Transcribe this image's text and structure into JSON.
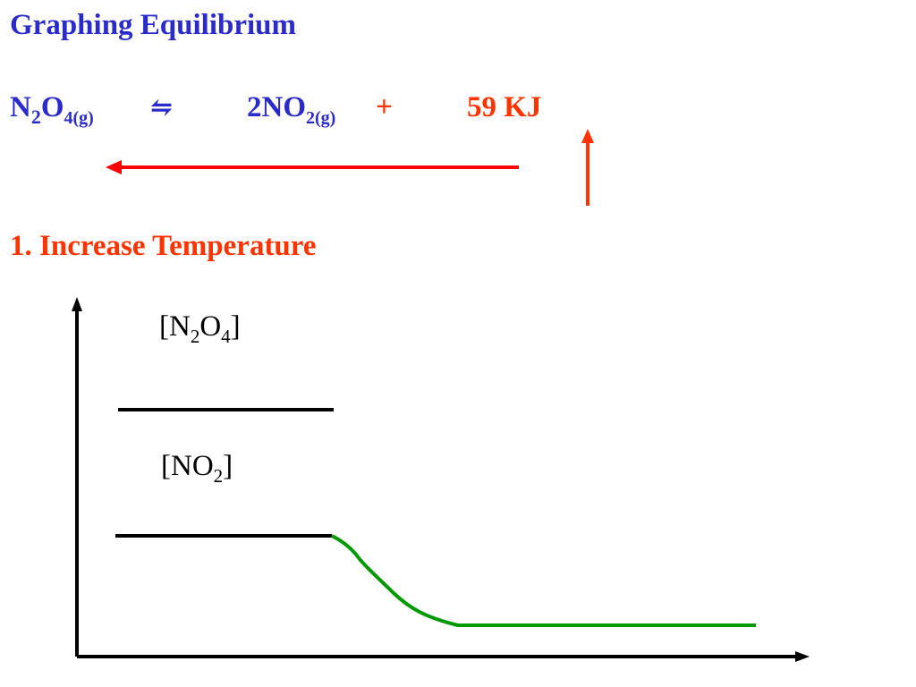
{
  "title": "Graphing Equilibrium",
  "equation": {
    "reactant": {
      "base1": "N",
      "sub1": "2",
      "base2": "O",
      "sub2": "4(g)"
    },
    "arrow_symbol": "⇋",
    "product": {
      "coef_base": "2NO",
      "sub": "2(g)"
    },
    "plus": "+",
    "energy": "59 KJ"
  },
  "step": "1. Increase Temperature",
  "graph": {
    "label_n2o4": {
      "open": "[N",
      "sub1": "2",
      "mid": "O",
      "sub2": "4",
      "close": "]"
    },
    "label_no2": {
      "open": "[NO",
      "sub": "2",
      "close": "]"
    }
  },
  "colors": {
    "title": "#2b2bcc",
    "energy": "#ff3300",
    "shift_arrow": "#ff0000",
    "temperature_arrow": "#ff3300",
    "change_curve": "#009900",
    "axes": "#000000"
  }
}
